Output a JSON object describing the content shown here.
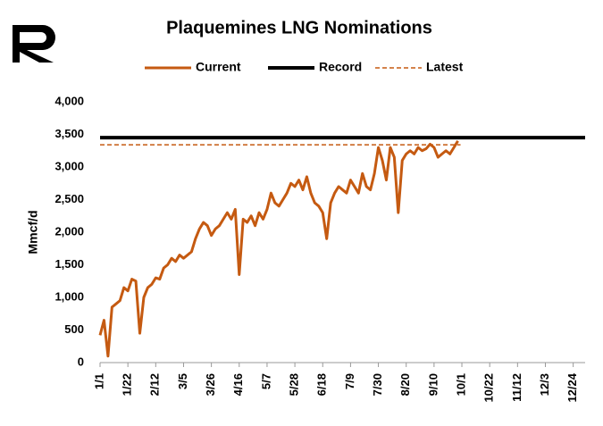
{
  "chart_data": {
    "type": "line",
    "title": "Plaquemines LNG Nominations",
    "y_label": "Mmcf/d",
    "xlim": [
      0,
      366
    ],
    "ylim": [
      0,
      4000
    ],
    "xticks": [
      {
        "value": 0,
        "label": "1/1"
      },
      {
        "value": 21,
        "label": "1/22"
      },
      {
        "value": 42,
        "label": "2/12"
      },
      {
        "value": 63,
        "label": "3/5"
      },
      {
        "value": 84,
        "label": "3/26"
      },
      {
        "value": 105,
        "label": "4/16"
      },
      {
        "value": 126,
        "label": "5/7"
      },
      {
        "value": 147,
        "label": "5/28"
      },
      {
        "value": 168,
        "label": "6/18"
      },
      {
        "value": 189,
        "label": "7/9"
      },
      {
        "value": 210,
        "label": "7/30"
      },
      {
        "value": 231,
        "label": "8/20"
      },
      {
        "value": 252,
        "label": "9/10"
      },
      {
        "value": 273,
        "label": "10/1"
      },
      {
        "value": 294,
        "label": "10/22"
      },
      {
        "value": 315,
        "label": "11/12"
      },
      {
        "value": 336,
        "label": "12/3"
      },
      {
        "value": 357,
        "label": "12/24"
      }
    ],
    "yticks": [
      0,
      500,
      {
        "value": 1000,
        "label": "1,000"
      },
      {
        "value": 1500,
        "label": "1,500"
      },
      {
        "value": 2000,
        "label": "2,000"
      },
      {
        "value": 2500,
        "label": "2,500"
      },
      {
        "value": 3000,
        "label": "3,000"
      },
      {
        "value": 3500,
        "label": "3,500"
      },
      {
        "value": 4000,
        "label": "4,000"
      }
    ],
    "series": [
      {
        "name": "Current",
        "color": "#c55a11",
        "width": 3,
        "dash": false,
        "x": [
          0,
          3,
          6,
          9,
          12,
          15,
          18,
          21,
          24,
          27,
          30,
          33,
          36,
          39,
          42,
          45,
          48,
          51,
          54,
          57,
          60,
          63,
          66,
          69,
          72,
          75,
          78,
          81,
          84,
          87,
          90,
          93,
          96,
          99,
          102,
          105,
          108,
          111,
          114,
          117,
          120,
          123,
          126,
          129,
          132,
          135,
          138,
          141,
          144,
          147,
          150,
          153,
          156,
          159,
          162,
          165,
          168,
          171,
          174,
          177,
          180,
          183,
          186,
          189,
          192,
          195,
          198,
          201,
          204,
          207,
          210,
          213,
          216,
          219,
          222,
          225,
          228,
          231,
          234,
          237,
          240,
          243,
          246,
          249,
          252,
          255,
          258,
          261,
          264,
          267,
          270
        ],
        "values": [
          420,
          650,
          100,
          850,
          900,
          950,
          1150,
          1100,
          1280,
          1250,
          450,
          1000,
          1150,
          1200,
          1300,
          1280,
          1450,
          1500,
          1600,
          1550,
          1650,
          1600,
          1650,
          1700,
          1900,
          2050,
          2150,
          2100,
          1950,
          2050,
          2100,
          2200,
          2300,
          2200,
          2350,
          1350,
          2200,
          2150,
          2250,
          2100,
          2300,
          2200,
          2350,
          2600,
          2450,
          2400,
          2500,
          2600,
          2750,
          2700,
          2800,
          2650,
          2850,
          2600,
          2450,
          2400,
          2300,
          1900,
          2450,
          2600,
          2700,
          2650,
          2600,
          2800,
          2700,
          2600,
          2900,
          2700,
          2650,
          2900,
          3300,
          3100,
          2800,
          3300,
          3150,
          2300,
          3100,
          3200,
          3250,
          3200,
          3300,
          3250,
          3280,
          3350,
          3300,
          3150,
          3200,
          3250,
          3200,
          3300,
          3400
        ]
      },
      {
        "name": "Record",
        "color": "#000000",
        "width": 4,
        "dash": false,
        "x": [
          0,
          366
        ],
        "values": [
          3450,
          3450
        ]
      },
      {
        "name": "Latest",
        "color": "#c55a11",
        "width": 1.5,
        "dash": true,
        "x": [
          0,
          272
        ],
        "values": [
          3340,
          3340
        ]
      }
    ]
  }
}
